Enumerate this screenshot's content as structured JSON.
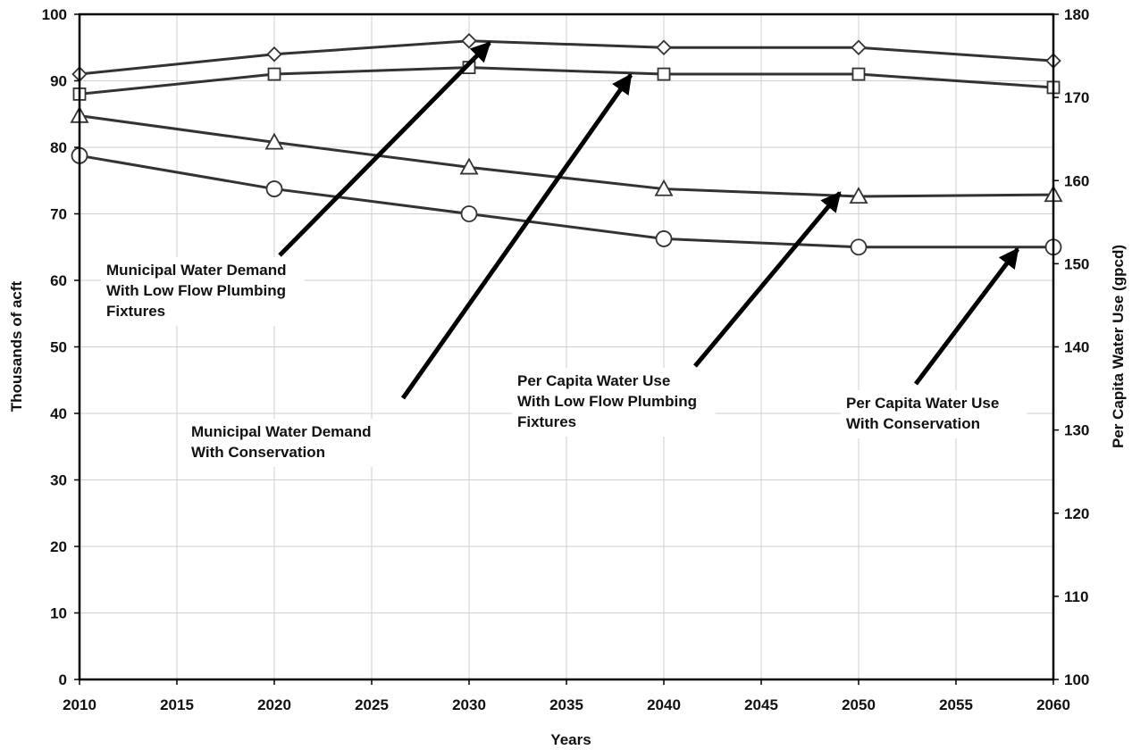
{
  "chart_data": {
    "type": "line",
    "xlabel": "Years",
    "ylabel_left": "Thousands of acft",
    "ylabel_right": "Per Capita Water Use (gpcd)",
    "x": [
      2010,
      2020,
      2030,
      2040,
      2050,
      2060
    ],
    "xlim": [
      2010,
      2060
    ],
    "xticks": [
      "2010",
      "2015",
      "2020",
      "2025",
      "2030",
      "2035",
      "2040",
      "2045",
      "2050",
      "2055",
      "2060"
    ],
    "ylim_left": [
      0,
      100
    ],
    "yticks_left": [
      "0",
      "10",
      "20",
      "30",
      "40",
      "50",
      "60",
      "70",
      "80",
      "90",
      "100"
    ],
    "ylim_right": [
      100,
      180
    ],
    "yticks_right": [
      "100",
      "110",
      "120",
      "130",
      "140",
      "150",
      "160",
      "170",
      "180"
    ],
    "grid": true,
    "series": [
      {
        "name": "Municipal Water Demand With Low Flow Plumbing Fixtures",
        "axis": "left",
        "marker": "diamond",
        "values": [
          91,
          94,
          96,
          95,
          95,
          93
        ]
      },
      {
        "name": "Municipal Water Demand With Conservation",
        "axis": "left",
        "marker": "square",
        "values": [
          88,
          91,
          92,
          91,
          91,
          89
        ]
      },
      {
        "name": "Per Capita Water Use With Low Flow Plumbing Fixtures",
        "axis": "right",
        "marker": "triangle",
        "values": [
          167.8,
          164.6,
          161.6,
          159,
          158.1,
          158.3
        ]
      },
      {
        "name": "Per Capita Water Use With Conservation",
        "axis": "right",
        "marker": "circle",
        "values": [
          163,
          159,
          156,
          153,
          152,
          152
        ]
      }
    ],
    "annotations": [
      {
        "lines": [
          "Municipal Water Demand",
          "With Low Flow Plumbing",
          "Fixtures"
        ],
        "target_series": 0
      },
      {
        "lines": [
          "Municipal Water Demand",
          "With Conservation"
        ],
        "target_series": 1
      },
      {
        "lines": [
          "Per Capita Water Use",
          "With Low Flow Plumbing",
          "Fixtures"
        ],
        "target_series": 2
      },
      {
        "lines": [
          "Per Capita Water Use",
          "With Conservation"
        ],
        "target_series": 3
      }
    ]
  },
  "colors": {
    "line": "#333333",
    "grid": "#cfcfcf",
    "axis": "#000000",
    "marker_fill": "#ffffff",
    "arrow": "#000000"
  }
}
